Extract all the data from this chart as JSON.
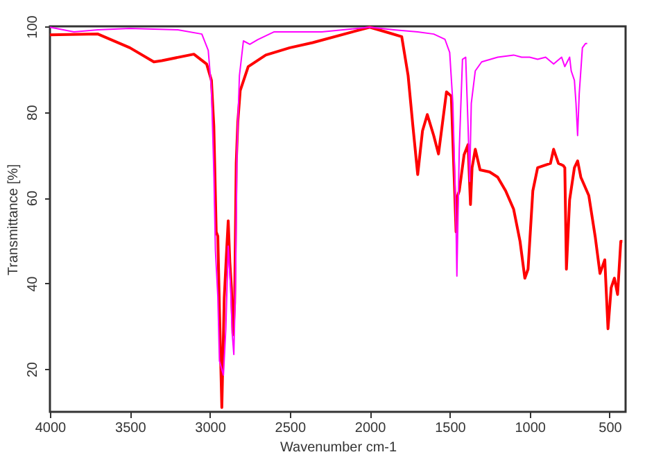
{
  "chart_data": {
    "type": "line",
    "xlabel": "Wavenumber cm-1",
    "ylabel": "Transmittance [%]",
    "xlim": [
      4000,
      400
    ],
    "ylim": [
      10,
      100
    ],
    "xticks": [
      4000,
      3500,
      3000,
      2500,
      2000,
      1500,
      1000,
      500
    ],
    "yticks": [
      20,
      40,
      60,
      80,
      100
    ],
    "grid": false,
    "marker": "none",
    "line_style": "solid",
    "series": [
      {
        "color": "#ff0000",
        "x": [
          4000,
          3700,
          3500,
          3350,
          3300,
          3100,
          3020,
          2990,
          2975,
          2960,
          2950,
          2940,
          2925,
          2910,
          2895,
          2885,
          2875,
          2865,
          2855,
          2845,
          2835,
          2825,
          2810,
          2760,
          2650,
          2500,
          2357,
          2000,
          1900,
          1800,
          1760,
          1730,
          1700,
          1670,
          1640,
          1600,
          1570,
          1520,
          1490,
          1470,
          1460,
          1450,
          1440,
          1410,
          1385,
          1370,
          1360,
          1340,
          1310,
          1250,
          1200,
          1150,
          1100,
          1060,
          1030,
          1010,
          980,
          950,
          870,
          850,
          820,
          790,
          780,
          770,
          750,
          720,
          700,
          680,
          630,
          590,
          560,
          530,
          510,
          490,
          470,
          450,
          430,
          420
        ],
        "values": [
          98,
          98.2,
          95,
          91.7,
          92,
          93.5,
          91.2,
          87.4,
          76.7,
          52,
          51,
          34,
          11,
          36.5,
          47.6,
          54.6,
          45,
          39,
          28,
          35.6,
          68,
          77.7,
          85,
          90.6,
          93.3,
          95,
          96.2,
          99.8,
          98.7,
          97.6,
          88.5,
          76.7,
          65.4,
          75.6,
          79.4,
          74.5,
          70.2,
          84.7,
          83.7,
          62.7,
          52,
          60.5,
          61.6,
          70,
          72.4,
          58.4,
          67,
          71.3,
          66.5,
          66,
          64.8,
          61.6,
          57.3,
          49.8,
          41.2,
          43.3,
          61.6,
          67,
          68,
          71.3,
          68,
          67.5,
          67,
          43.3,
          59.5,
          67,
          68.6,
          64.8,
          60.5,
          50.9,
          42.3,
          45.5,
          29.4,
          39,
          41.2,
          37.4,
          49.8,
          49.8
        ]
      },
      {
        "color": "#ff00ff",
        "x": [
          4000,
          3850,
          3700,
          3500,
          3200,
          3050,
          3010,
          2990,
          2975,
          2965,
          2950,
          2940,
          2915,
          2900,
          2885,
          2870,
          2860,
          2850,
          2840,
          2830,
          2815,
          2790,
          2750,
          2700,
          2600,
          2300,
          2000,
          1850,
          1700,
          1600,
          1530,
          1500,
          1480,
          1460,
          1455,
          1440,
          1420,
          1400,
          1385,
          1375,
          1365,
          1340,
          1300,
          1200,
          1100,
          1050,
          1000,
          950,
          900,
          850,
          800,
          780,
          750,
          740,
          720,
          710,
          700,
          690,
          670,
          650,
          640
        ],
        "values": [
          99.8,
          98.7,
          99.2,
          99.5,
          99.2,
          98.2,
          94.4,
          85.3,
          66,
          47.6,
          36.9,
          21.9,
          18.6,
          29.4,
          48.7,
          39,
          28.3,
          23.4,
          39,
          71.3,
          88.5,
          96.6,
          95.8,
          96.9,
          98.7,
          98.7,
          99.8,
          99.2,
          98.7,
          98.2,
          97,
          93.9,
          82,
          53,
          41.7,
          71.3,
          92.3,
          92.8,
          76.7,
          63.8,
          82,
          89.6,
          91.7,
          92.8,
          93.3,
          92.8,
          92.8,
          92.3,
          92.8,
          91.2,
          92.8,
          90.6,
          92.8,
          89.6,
          87.4,
          82,
          74.5,
          84.2,
          95,
          96,
          96
        ]
      }
    ]
  }
}
